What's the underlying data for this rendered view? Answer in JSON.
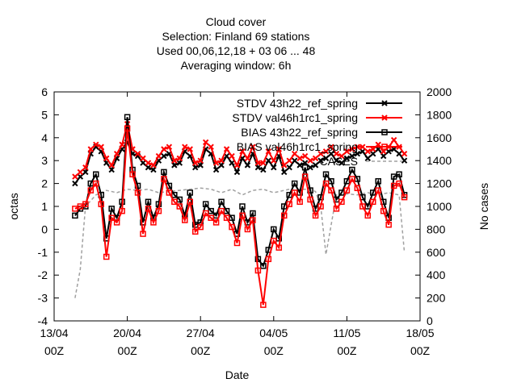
{
  "chart_data": {
    "type": "line",
    "title": [
      "Cloud cover",
      "Selection: Finland      69 stations",
      "Used  00,06,12,18  + 03 06 ... 48",
      "Averaging window:  6h"
    ],
    "xlabel": "Date",
    "ylabel": "octas",
    "y2label": "No cases",
    "x_ticks": [
      {
        "line1": "13/04",
        "line2": "00Z",
        "pos": 0
      },
      {
        "line1": "20/04",
        "line2": "00Z",
        "pos": 7
      },
      {
        "line1": "27/04",
        "line2": "00Z",
        "pos": 14
      },
      {
        "line1": "04/05",
        "line2": "00Z",
        "pos": 21
      },
      {
        "line1": "11/05",
        "line2": "00Z",
        "pos": 28
      },
      {
        "line1": "18/05",
        "line2": "00Z",
        "pos": 35
      }
    ],
    "xlim": [
      0,
      35
    ],
    "ylim": [
      -4,
      6
    ],
    "y_ticks": [
      -4,
      -3,
      -2,
      -1,
      0,
      1,
      2,
      3,
      4,
      5,
      6
    ],
    "y2lim": [
      0,
      2000
    ],
    "y2_ticks": [
      0,
      200,
      400,
      600,
      800,
      1000,
      1200,
      1400,
      1600,
      1800,
      2000
    ],
    "legend_position": "top-right",
    "grid": false,
    "series": [
      {
        "name": "STDV 43h22_ref_spring",
        "axis": "y1",
        "color": "#000000",
        "marker": "x",
        "x": [
          2.0,
          2.5,
          3.0,
          3.5,
          4.0,
          4.5,
          5.0,
          5.5,
          6.0,
          6.5,
          7.0,
          7.5,
          8.0,
          8.5,
          9.0,
          9.5,
          10.0,
          10.5,
          11.0,
          11.5,
          12.0,
          12.5,
          13.0,
          13.5,
          14.0,
          14.5,
          15.0,
          15.5,
          16.0,
          16.5,
          17.0,
          17.5,
          18.0,
          18.5,
          19.0,
          19.5,
          20.0,
          20.5,
          21.0,
          21.5,
          22.0,
          22.5,
          23.0,
          23.5,
          24.0,
          24.5,
          25.0,
          25.5,
          26.0,
          26.5,
          27.0,
          27.5,
          28.0,
          28.5,
          29.0,
          29.5,
          30.0,
          30.5,
          31.0,
          31.5,
          32.0,
          32.5,
          33.0,
          33.5
        ],
        "values": [
          2.0,
          2.3,
          2.5,
          3.3,
          3.6,
          3.4,
          2.9,
          2.6,
          3.1,
          3.5,
          3.8,
          3.3,
          3.2,
          2.9,
          2.7,
          2.6,
          3.0,
          3.2,
          3.3,
          2.8,
          2.9,
          3.4,
          3.2,
          2.7,
          2.8,
          3.5,
          3.3,
          2.6,
          2.8,
          3.2,
          2.9,
          2.5,
          3.1,
          2.8,
          3.3,
          2.7,
          2.6,
          3.0,
          2.7,
          3.2,
          2.5,
          2.7,
          3.0,
          2.8,
          2.9,
          2.7,
          2.8,
          3.0,
          3.1,
          3.3,
          3.0,
          2.9,
          3.1,
          3.2,
          3.3,
          3.4,
          3.1,
          3.3,
          3.5,
          3.2,
          3.4,
          3.5,
          3.3,
          3.0
        ]
      },
      {
        "name": "STDV val46h1rc1_spring",
        "axis": "y1",
        "color": "#ff0000",
        "marker": "x",
        "x": [
          2.0,
          2.5,
          3.0,
          3.5,
          4.0,
          4.5,
          5.0,
          5.5,
          6.0,
          6.5,
          7.0,
          7.5,
          8.0,
          8.5,
          9.0,
          9.5,
          10.0,
          10.5,
          11.0,
          11.5,
          12.0,
          12.5,
          13.0,
          13.5,
          14.0,
          14.5,
          15.0,
          15.5,
          16.0,
          16.5,
          17.0,
          17.5,
          18.0,
          18.5,
          19.0,
          19.5,
          20.0,
          20.5,
          21.0,
          21.5,
          22.0,
          22.5,
          23.0,
          23.5,
          24.0,
          24.5,
          25.0,
          25.5,
          26.0,
          26.5,
          27.0,
          27.5,
          28.0,
          28.5,
          29.0,
          29.5,
          30.0,
          30.5,
          31.0,
          31.5,
          32.0,
          32.5,
          33.0,
          33.5
        ],
        "values": [
          2.3,
          2.5,
          2.7,
          3.5,
          3.7,
          3.6,
          3.1,
          2.8,
          3.3,
          3.7,
          4.6,
          3.5,
          3.3,
          3.1,
          2.9,
          2.8,
          3.2,
          3.5,
          3.6,
          3.0,
          3.1,
          3.6,
          3.5,
          2.9,
          3.0,
          3.8,
          3.6,
          2.9,
          3.0,
          3.5,
          3.2,
          2.8,
          3.4,
          3.1,
          3.6,
          2.9,
          2.9,
          3.4,
          3.0,
          3.5,
          2.8,
          3.0,
          3.3,
          3.1,
          3.2,
          3.0,
          3.1,
          3.3,
          3.4,
          3.6,
          3.3,
          3.2,
          3.4,
          3.5,
          3.6,
          3.6,
          3.4,
          3.5,
          3.7,
          3.4,
          3.6,
          3.9,
          3.6,
          3.3
        ]
      },
      {
        "name": "BIAS 43h22_ref_spring",
        "axis": "y1",
        "color": "#000000",
        "marker": "square",
        "x": [
          2.0,
          2.5,
          3.0,
          3.5,
          4.0,
          4.5,
          5.0,
          5.5,
          6.0,
          6.5,
          7.0,
          7.5,
          8.0,
          8.5,
          9.0,
          9.5,
          10.0,
          10.5,
          11.0,
          11.5,
          12.0,
          12.5,
          13.0,
          13.5,
          14.0,
          14.5,
          15.0,
          15.5,
          16.0,
          16.5,
          17.0,
          17.5,
          18.0,
          18.5,
          19.0,
          19.5,
          20.0,
          20.5,
          21.0,
          21.5,
          22.0,
          22.5,
          23.0,
          23.5,
          24.0,
          24.5,
          25.0,
          25.5,
          26.0,
          26.5,
          27.0,
          27.5,
          28.0,
          28.5,
          29.0,
          29.5,
          30.0,
          30.5,
          31.0,
          31.5,
          32.0,
          32.5,
          33.0,
          33.5
        ],
        "values": [
          0.6,
          0.9,
          1.0,
          2.0,
          2.4,
          1.5,
          -0.4,
          0.9,
          0.5,
          1.2,
          4.9,
          2.6,
          1.9,
          0.3,
          1.2,
          0.5,
          1.1,
          2.5,
          1.9,
          1.5,
          1.3,
          0.6,
          1.6,
          0.2,
          0.3,
          1.1,
          0.8,
          0.6,
          1.2,
          0.8,
          0.5,
          -0.2,
          1.0,
          0.3,
          0.7,
          -1.3,
          -1.6,
          -0.9,
          0.0,
          -0.4,
          1.0,
          1.5,
          2.0,
          1.6,
          2.7,
          1.7,
          0.9,
          1.4,
          2.4,
          2.1,
          1.3,
          1.6,
          2.1,
          2.6,
          2.2,
          1.4,
          1.0,
          1.6,
          2.1,
          1.2,
          0.5,
          2.3,
          2.4,
          1.5
        ]
      },
      {
        "name": "BIAS val46h1rc1_spring",
        "axis": "y1",
        "color": "#ff0000",
        "marker": "square",
        "x": [
          2.0,
          2.5,
          3.0,
          3.5,
          4.0,
          4.5,
          5.0,
          5.5,
          6.0,
          6.5,
          7.0,
          7.5,
          8.0,
          8.5,
          9.0,
          9.5,
          10.0,
          10.5,
          11.0,
          11.5,
          12.0,
          12.5,
          13.0,
          13.5,
          14.0,
          14.5,
          15.0,
          15.5,
          16.0,
          16.5,
          17.0,
          17.5,
          18.0,
          18.5,
          19.0,
          19.5,
          20.0,
          20.5,
          21.0,
          21.5,
          22.0,
          22.5,
          23.0,
          23.5,
          24.0,
          24.5,
          25.0,
          25.5,
          26.0,
          26.5,
          27.0,
          27.5,
          28.0,
          28.5,
          29.0,
          29.5,
          30.0,
          30.5,
          31.0,
          31.5,
          32.0,
          32.5,
          33.0,
          33.5
        ],
        "values": [
          0.9,
          1.0,
          1.1,
          1.7,
          2.0,
          1.1,
          -1.2,
          0.5,
          0.3,
          0.8,
          4.4,
          2.4,
          1.6,
          -0.2,
          0.9,
          0.3,
          0.8,
          2.2,
          1.6,
          1.2,
          1.0,
          0.4,
          1.2,
          -0.1,
          0.1,
          0.7,
          0.5,
          0.3,
          0.8,
          0.5,
          0.1,
          -0.6,
          0.6,
          0.0,
          0.4,
          -1.8,
          -3.3,
          -1.3,
          -0.5,
          -0.8,
          0.6,
          1.1,
          1.6,
          1.2,
          2.3,
          1.3,
          0.6,
          1.0,
          2.0,
          1.7,
          0.9,
          1.2,
          1.7,
          2.2,
          1.8,
          1.0,
          0.6,
          1.2,
          1.7,
          0.8,
          0.2,
          1.9,
          2.0,
          1.4
        ]
      },
      {
        "name": "CASES",
        "axis": "y2",
        "color": "#a0a0a0",
        "marker": "none",
        "dashed": true,
        "x": [
          2.0,
          2.5,
          3.0,
          4.0,
          5.0,
          6.0,
          7.0,
          8.0,
          9.0,
          10.0,
          11.0,
          12.0,
          13.0,
          14.0,
          15.0,
          16.0,
          17.0,
          18.0,
          19.0,
          20.0,
          21.0,
          22.0,
          22.5,
          23.0,
          23.5,
          24.0,
          24.5,
          25.0,
          25.5,
          26.0,
          27.0,
          27.5,
          28.0,
          29.0,
          30.0,
          31.0,
          32.0,
          33.0,
          33.5
        ],
        "values": [
          200,
          450,
          1000,
          1100,
          1140,
          1120,
          1150,
          1140,
          1150,
          1120,
          1130,
          1140,
          1150,
          1160,
          1150,
          1120,
          1150,
          1100,
          1140,
          1150,
          1120,
          1140,
          1150,
          1140,
          1150,
          1150,
          1150,
          1130,
          1000,
          580,
          1100,
          1100,
          1110,
          1100,
          1120,
          1100,
          1120,
          1100,
          600
        ]
      }
    ]
  }
}
